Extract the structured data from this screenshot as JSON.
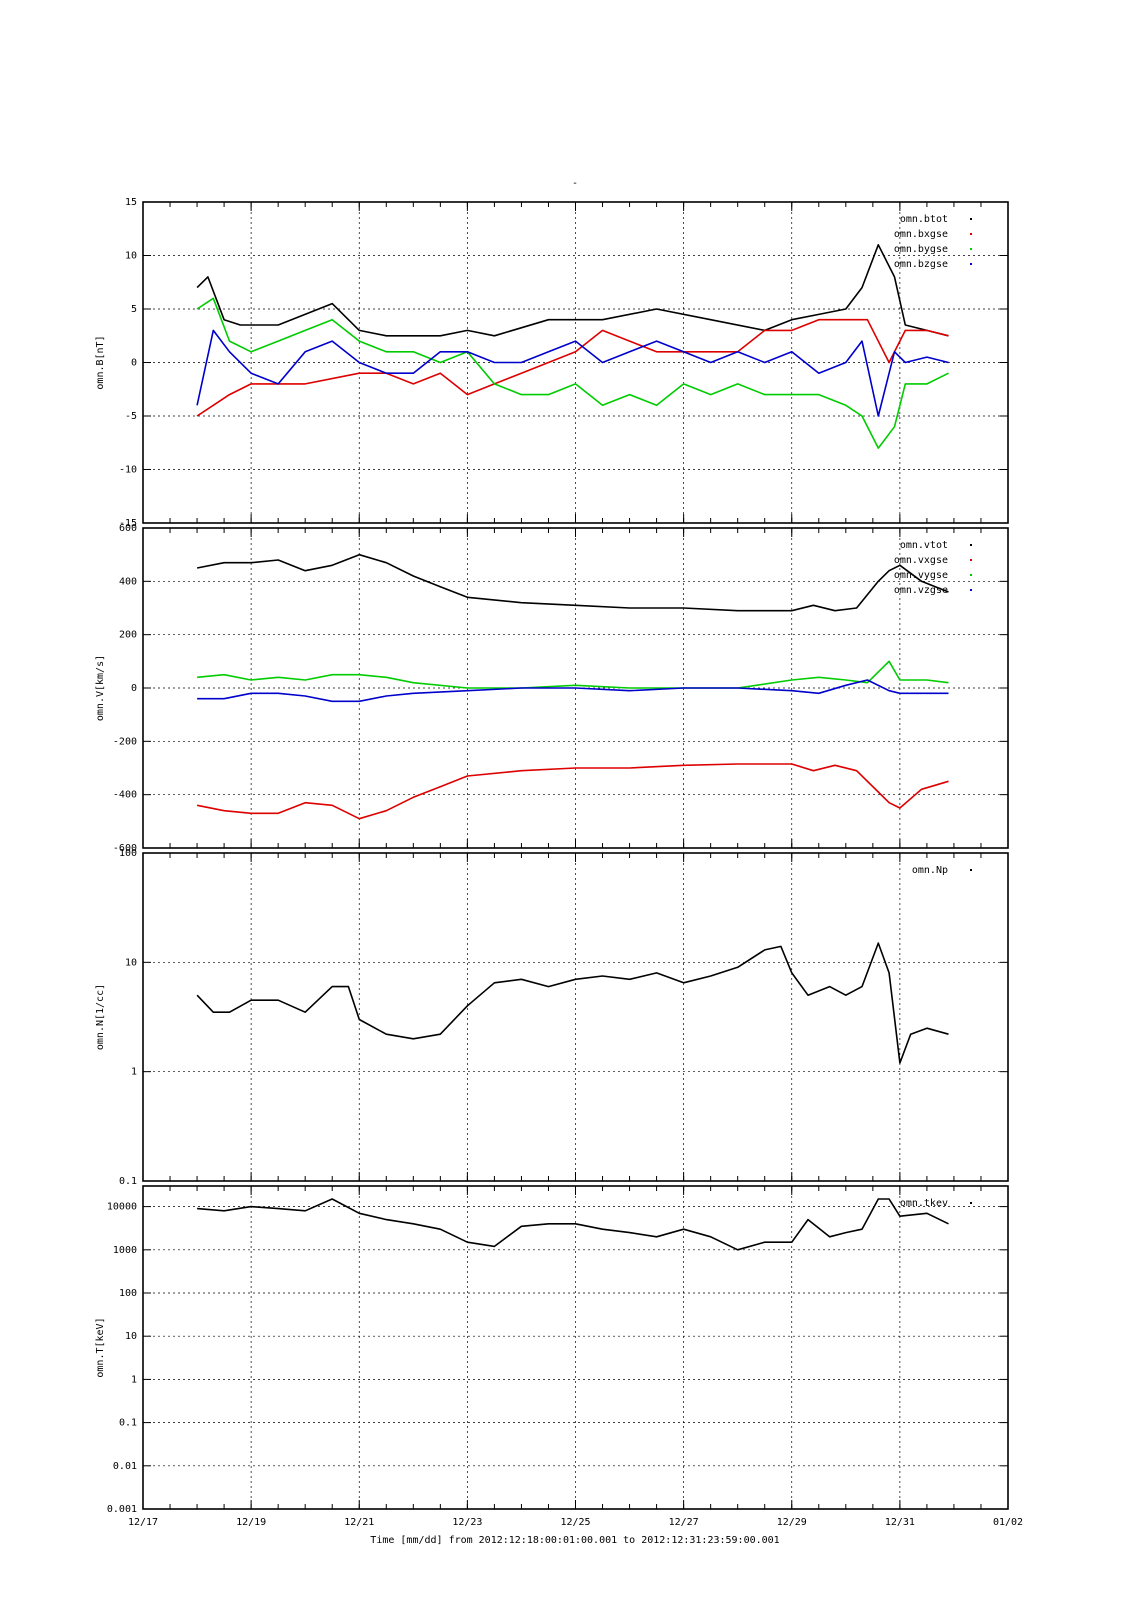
{
  "figure": {
    "top_title": "-",
    "xlabel": "Time [mm/dd]  from 2012:12:18:00:01:00.001  to  2012:12:31:23:59:00.001",
    "x_ticks": [
      "12/17",
      "12/19",
      "12/21",
      "12/23",
      "12/25",
      "12/27",
      "12/29",
      "12/31",
      "01/02"
    ]
  },
  "chart_data": [
    {
      "type": "scatter",
      "ylabel": "omn.B[nT]",
      "ylim": [
        -15,
        15
      ],
      "yscale": "linear",
      "grid": true,
      "legend_position": "top-right",
      "y_ticks": [
        {
          "v": 15,
          "label": "15"
        },
        {
          "v": 10,
          "label": "10"
        },
        {
          "v": 5,
          "label": "5"
        },
        {
          "v": 0,
          "label": "0"
        },
        {
          "v": -5,
          "label": "-5"
        },
        {
          "v": -10,
          "label": "-10"
        },
        {
          "v": -15,
          "label": "-15"
        }
      ],
      "series": [
        {
          "name": "omn.btot",
          "color": "#000000",
          "x": [
            18.0,
            18.2,
            18.5,
            18.8,
            19.5,
            20.5,
            21.0,
            21.5,
            22.5,
            23.0,
            23.5,
            24.5,
            25.5,
            26.5,
            27.5,
            28.5,
            29.0,
            29.5,
            30.0,
            30.3,
            30.6,
            30.9,
            31.1,
            31.5,
            31.9
          ],
          "y": [
            7,
            8,
            4,
            3.5,
            3.5,
            5.5,
            3,
            2.5,
            2.5,
            3,
            2.5,
            4,
            4,
            5,
            4,
            3,
            4,
            4.5,
            5,
            7,
            11,
            8,
            3.5,
            3,
            2.5
          ]
        },
        {
          "name": "omn.bxgse",
          "color": "#dd0000",
          "x": [
            18.0,
            18.3,
            18.6,
            19.0,
            20.0,
            21.0,
            21.5,
            22.0,
            22.5,
            23.0,
            23.5,
            24.0,
            25.0,
            25.5,
            26.0,
            26.5,
            27.0,
            28.0,
            28.5,
            29.0,
            29.5,
            30.0,
            30.4,
            30.8,
            31.1,
            31.5,
            31.9
          ],
          "y": [
            -5,
            -4,
            -3,
            -2,
            -2,
            -1,
            -1,
            -2,
            -1,
            -3,
            -2,
            -1,
            1,
            3,
            2,
            1,
            1,
            1,
            3,
            3,
            4,
            4,
            4,
            0,
            3,
            3,
            2.5
          ]
        },
        {
          "name": "omn.bygse",
          "color": "#00cc00",
          "x": [
            18.0,
            18.3,
            18.6,
            19.0,
            19.5,
            20.0,
            20.5,
            21.0,
            21.5,
            22.0,
            22.5,
            23.0,
            23.5,
            24.0,
            24.5,
            25.0,
            25.5,
            26.0,
            26.5,
            27.0,
            27.5,
            28.0,
            28.5,
            29.0,
            29.5,
            30.0,
            30.3,
            30.6,
            30.9,
            31.1,
            31.5,
            31.9
          ],
          "y": [
            5,
            6,
            2,
            1,
            2,
            3,
            4,
            2,
            1,
            1,
            0,
            1,
            -2,
            -3,
            -3,
            -2,
            -4,
            -3,
            -4,
            -2,
            -3,
            -2,
            -3,
            -3,
            -3,
            -4,
            -5,
            -8,
            -6,
            -2,
            -2,
            -1
          ]
        },
        {
          "name": "omn.bzgse",
          "color": "#0000cc",
          "x": [
            18.0,
            18.3,
            18.6,
            19.0,
            19.5,
            20.0,
            20.5,
            21.0,
            21.5,
            22.0,
            22.5,
            23.0,
            23.5,
            24.0,
            24.5,
            25.0,
            25.5,
            26.0,
            26.5,
            27.0,
            27.5,
            28.0,
            28.5,
            29.0,
            29.5,
            30.0,
            30.3,
            30.6,
            30.9,
            31.1,
            31.5,
            31.9
          ],
          "y": [
            -4,
            3,
            1,
            -1,
            -2,
            1,
            2,
            0,
            -1,
            -1,
            1,
            1,
            0,
            0,
            1,
            2,
            0,
            1,
            2,
            1,
            0,
            1,
            0,
            1,
            -1,
            0,
            2,
            -5,
            1,
            0,
            0.5,
            0
          ]
        }
      ]
    },
    {
      "type": "scatter",
      "ylabel": "omn.V[km/s]",
      "ylim": [
        -600,
        600
      ],
      "yscale": "linear",
      "grid": true,
      "legend_position": "top-right",
      "y_ticks": [
        {
          "v": 600,
          "label": "600"
        },
        {
          "v": 400,
          "label": "400"
        },
        {
          "v": 200,
          "label": "200"
        },
        {
          "v": 0,
          "label": "0"
        },
        {
          "v": -200,
          "label": "-200"
        },
        {
          "v": -400,
          "label": "-400"
        },
        {
          "v": -600,
          "label": "-600"
        }
      ],
      "series": [
        {
          "name": "omn.vtot",
          "color": "#000000",
          "x": [
            18.0,
            18.5,
            19.0,
            19.5,
            20.0,
            20.5,
            21.0,
            21.5,
            22.0,
            22.5,
            23.0,
            24.0,
            25.0,
            26.0,
            27.0,
            28.0,
            29.0,
            29.4,
            29.8,
            30.2,
            30.6,
            30.8,
            31.0,
            31.4,
            31.9
          ],
          "y": [
            450,
            470,
            470,
            480,
            440,
            460,
            500,
            470,
            420,
            380,
            340,
            320,
            310,
            300,
            300,
            290,
            290,
            310,
            290,
            300,
            400,
            440,
            460,
            400,
            360
          ]
        },
        {
          "name": "omn.vxgse",
          "color": "#dd0000",
          "x": [
            18.0,
            18.5,
            19.0,
            19.5,
            20.0,
            20.5,
            21.0,
            21.5,
            22.0,
            22.5,
            23.0,
            24.0,
            25.0,
            26.0,
            27.0,
            28.0,
            29.0,
            29.4,
            29.8,
            30.2,
            30.6,
            30.8,
            31.0,
            31.4,
            31.9
          ],
          "y": [
            -440,
            -460,
            -470,
            -470,
            -430,
            -440,
            -490,
            -460,
            -410,
            -370,
            -330,
            -310,
            -300,
            -300,
            -290,
            -285,
            -285,
            -310,
            -290,
            -310,
            -390,
            -430,
            -450,
            -380,
            -350
          ]
        },
        {
          "name": "omn.vygse",
          "color": "#00cc00",
          "x": [
            18.0,
            18.5,
            19.0,
            19.5,
            20.0,
            20.5,
            21.0,
            21.5,
            22.0,
            23.0,
            24.0,
            25.0,
            26.0,
            27.0,
            28.0,
            29.0,
            29.5,
            30.0,
            30.4,
            30.8,
            31.0,
            31.5,
            31.9
          ],
          "y": [
            40,
            50,
            30,
            40,
            30,
            50,
            50,
            40,
            20,
            0,
            0,
            10,
            0,
            0,
            0,
            30,
            40,
            30,
            20,
            100,
            30,
            30,
            20
          ]
        },
        {
          "name": "omn.vzgse",
          "color": "#0000cc",
          "x": [
            18.0,
            18.5,
            19.0,
            19.5,
            20.0,
            20.5,
            21.0,
            21.5,
            22.0,
            23.0,
            24.0,
            25.0,
            26.0,
            27.0,
            28.0,
            29.0,
            29.5,
            30.0,
            30.4,
            30.8,
            31.0,
            31.5,
            31.9
          ],
          "y": [
            -40,
            -40,
            -20,
            -20,
            -30,
            -50,
            -50,
            -30,
            -20,
            -10,
            0,
            0,
            -10,
            0,
            0,
            -10,
            -20,
            10,
            30,
            -10,
            -20,
            -20,
            -20
          ]
        }
      ]
    },
    {
      "type": "scatter",
      "ylabel": "omn.N[1/cc]",
      "ylim": [
        0.1,
        100
      ],
      "yscale": "log",
      "grid": true,
      "legend_position": "top-right",
      "y_ticks": [
        {
          "v": 100,
          "label": "100"
        },
        {
          "v": 10,
          "label": "10"
        },
        {
          "v": 1,
          "label": "1"
        },
        {
          "v": 0.1,
          "label": "0.1"
        }
      ],
      "series": [
        {
          "name": "omn.Np",
          "color": "#000000",
          "x": [
            18.0,
            18.3,
            18.6,
            19.0,
            19.5,
            20.0,
            20.5,
            20.8,
            21.0,
            21.5,
            22.0,
            22.5,
            23.0,
            23.5,
            24.0,
            24.5,
            25.0,
            25.5,
            26.0,
            26.5,
            27.0,
            27.5,
            28.0,
            28.5,
            28.8,
            29.0,
            29.3,
            29.7,
            30.0,
            30.3,
            30.6,
            30.8,
            31.0,
            31.2,
            31.5,
            31.9
          ],
          "y": [
            5,
            3.5,
            3.5,
            4.5,
            4.5,
            3.5,
            6,
            6,
            3,
            2.2,
            2,
            2.2,
            4,
            6.5,
            7,
            6,
            7,
            7.5,
            7,
            8,
            6.5,
            7.5,
            9,
            13,
            14,
            8,
            5,
            6,
            5,
            6,
            15,
            8,
            1.2,
            2.2,
            2.5,
            2.2
          ]
        }
      ]
    },
    {
      "type": "scatter",
      "ylabel": "omn.T[keV]",
      "ylim": [
        0.001,
        30000
      ],
      "yscale": "log",
      "grid": true,
      "legend_position": "top-right",
      "y_ticks": [
        {
          "v": 10000,
          "label": "10000"
        },
        {
          "v": 1000,
          "label": "1000"
        },
        {
          "v": 100,
          "label": "100"
        },
        {
          "v": 10,
          "label": "10"
        },
        {
          "v": 1,
          "label": "1"
        },
        {
          "v": 0.1,
          "label": "0.1"
        },
        {
          "v": 0.01,
          "label": "0.01"
        },
        {
          "v": 0.001,
          "label": "0.001"
        }
      ],
      "series": [
        {
          "name": "omn.tkev",
          "color": "#000000",
          "x": [
            18.0,
            18.5,
            19.0,
            19.5,
            20.0,
            20.5,
            21.0,
            21.5,
            22.0,
            22.5,
            23.0,
            23.5,
            24.0,
            24.5,
            25.0,
            25.5,
            26.0,
            26.5,
            27.0,
            27.5,
            28.0,
            28.5,
            29.0,
            29.3,
            29.7,
            30.0,
            30.3,
            30.6,
            30.8,
            31.0,
            31.5,
            31.9
          ],
          "y": [
            9000,
            8000,
            10000,
            9000,
            8000,
            15000,
            7000,
            5000,
            4000,
            3000,
            1500,
            1200,
            3500,
            4000,
            4000,
            3000,
            2500,
            2000,
            3000,
            2000,
            1000,
            1500,
            1500,
            5000,
            2000,
            2500,
            3000,
            15000,
            15000,
            6000,
            7000,
            4000
          ]
        }
      ]
    }
  ]
}
